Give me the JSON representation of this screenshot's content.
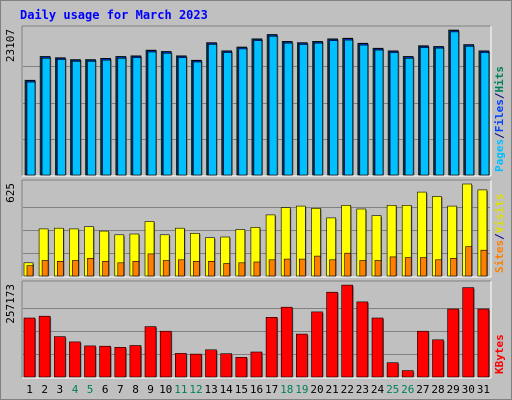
{
  "chart_data": {
    "type": "bar",
    "title": "Daily usage for March 2023",
    "categories": [
      "1",
      "2",
      "3",
      "4",
      "5",
      "6",
      "7",
      "8",
      "9",
      "10",
      "11",
      "12",
      "13",
      "14",
      "15",
      "16",
      "17",
      "18",
      "19",
      "20",
      "21",
      "22",
      "23",
      "24",
      "25",
      "26",
      "27",
      "28",
      "29",
      "30",
      "31"
    ],
    "weekend_days": [
      "4",
      "5",
      "11",
      "12",
      "18",
      "19",
      "25",
      "26"
    ],
    "panels": [
      {
        "id": "hits",
        "max_label": "23107",
        "ylim": [
          0,
          23107
        ],
        "legend": [
          {
            "text": "Pages",
            "color": "#00c0ff"
          },
          {
            "text": "/",
            "color": "#000080"
          },
          {
            "text": "Files",
            "color": "#0040ff"
          },
          {
            "text": "/",
            "color": "#000080"
          },
          {
            "text": "Hits",
            "color": "#00805c"
          }
        ],
        "series": [
          {
            "name": "Hits",
            "color": "#00805c",
            "values": [
              15100,
              18900,
              18700,
              18400,
              18400,
              18600,
              18900,
              19000,
              19900,
              19700,
              19000,
              18300,
              21100,
              19800,
              20400,
              21700,
              22400,
              21300,
              21100,
              21300,
              21700,
              21800,
              21000,
              20200,
              19800,
              18900,
              20600,
              20500,
              23107,
              20800,
              19800
            ]
          },
          {
            "name": "Files",
            "color": "#0040ff",
            "values": [
              15000,
              18800,
              18600,
              18300,
              18300,
              18500,
              18800,
              18900,
              19800,
              19600,
              18900,
              18200,
              21000,
              19700,
              20300,
              21600,
              22300,
              21200,
              21000,
              21200,
              21600,
              21700,
              20900,
              20100,
              19700,
              18800,
              20500,
              20400,
              23000,
              20700,
              19700
            ]
          },
          {
            "name": "Pages",
            "color": "#00c0ff",
            "values": [
              14800,
              18600,
              18400,
              18100,
              18100,
              18300,
              18600,
              18700,
              19600,
              19400,
              18700,
              18000,
              20800,
              19500,
              20100,
              21400,
              22100,
              21000,
              20800,
              21000,
              21400,
              21500,
              20700,
              19900,
              19500,
              18600,
              20300,
              20200,
              22800,
              20500,
              19500
            ]
          }
        ]
      },
      {
        "id": "visits",
        "max_label": "625",
        "ylim": [
          0,
          625
        ],
        "legend": [
          {
            "text": "Sites",
            "color": "#ff8000"
          },
          {
            "text": "/",
            "color": "#000080"
          },
          {
            "text": "Visits",
            "color": "#e0e000"
          }
        ],
        "series": [
          {
            "name": "Visits",
            "color": "#ffff00",
            "values": [
              90,
              320,
              325,
              320,
              335,
              305,
              280,
              285,
              370,
              280,
              325,
              290,
              260,
              265,
              315,
              330,
              415,
              465,
              475,
              460,
              395,
              480,
              455,
              410,
              480,
              480,
              570,
              540,
              475,
              625,
              585
            ]
          },
          {
            "name": "Sites",
            "color": "#ff8000",
            "values": [
              70,
              105,
              100,
              105,
              120,
              100,
              90,
              100,
              150,
              105,
              110,
              100,
              100,
              85,
              90,
              95,
              110,
              115,
              115,
              135,
              110,
              155,
              105,
              105,
              130,
              125,
              125,
              110,
              120,
              200,
              175
            ]
          }
        ]
      },
      {
        "id": "kbytes",
        "max_label": "257173",
        "ylim": [
          0,
          257173
        ],
        "legend": [
          {
            "text": "KBytes",
            "color": "#ff0000"
          }
        ],
        "series": [
          {
            "name": "KBytes",
            "color": "#ff0000",
            "values": [
              165000,
              170000,
              113000,
              98000,
              87000,
              86000,
              83000,
              88000,
              141000,
              128000,
              66000,
              64000,
              76000,
              65000,
              55000,
              70000,
              167000,
              195000,
              120000,
              182000,
              237000,
              257000,
              210000,
              165000,
              40000,
              18000,
              128000,
              104000,
              190000,
              250000,
              190000
            ]
          }
        ]
      }
    ]
  }
}
